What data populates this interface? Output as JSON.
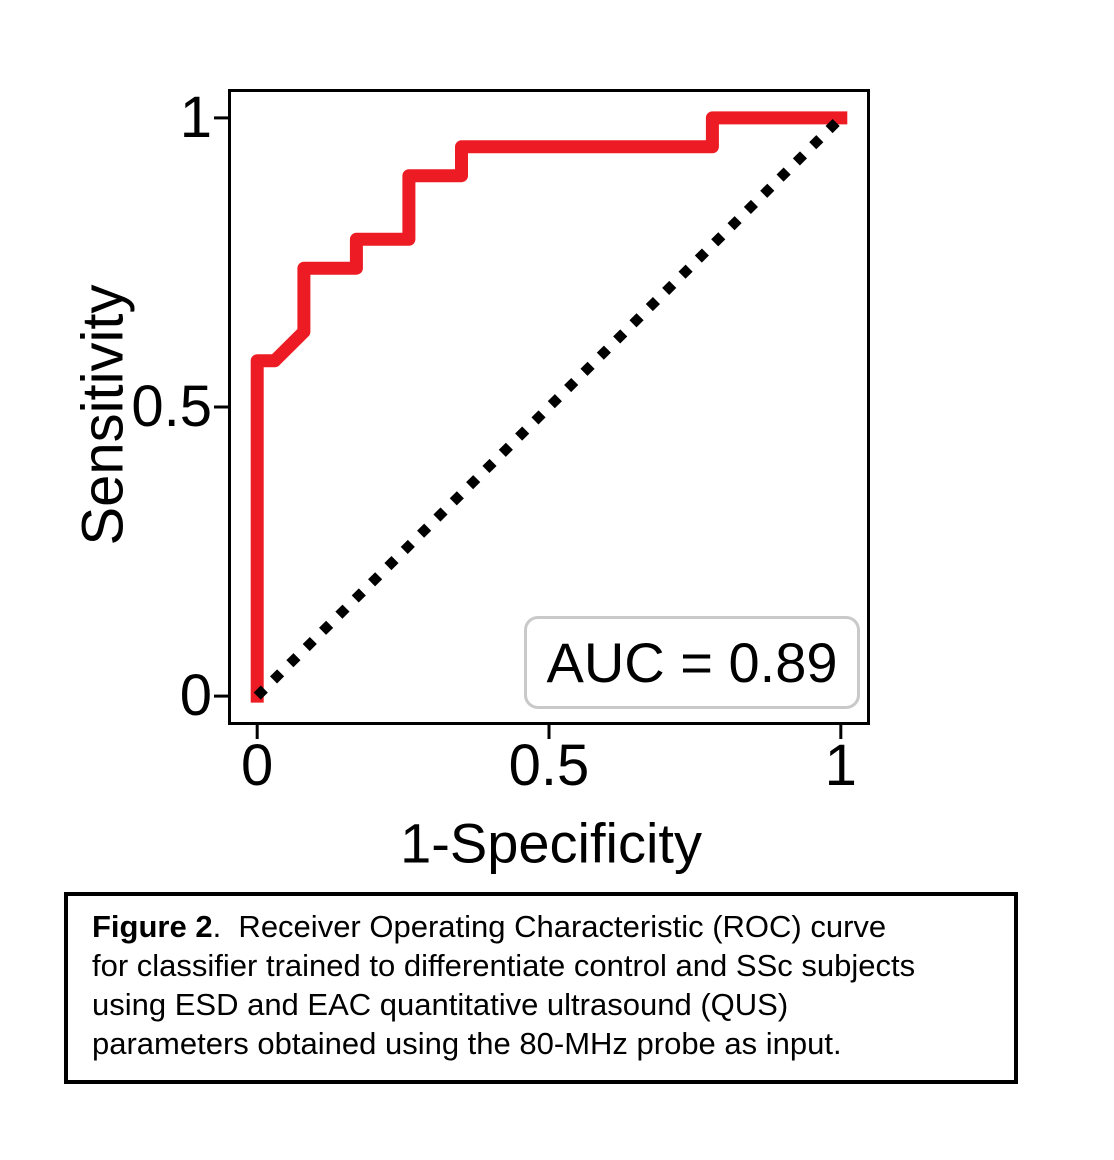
{
  "caption": {
    "label": "Figure 2",
    "line1_rest": ".  Receiver Operating Characteristic (ROC) curve",
    "lines": [
      "for classifier trained to differentiate control and SSc subjects",
      "using ESD and EAC quantitative ultrasound (QUS)",
      "parameters obtained using the 80-MHz probe as input."
    ]
  },
  "chart_data": {
    "type": "line",
    "title": "",
    "xlabel": "1-Specificity",
    "ylabel": "Sensitivity",
    "xlim": [
      -0.05,
      1.05
    ],
    "ylim": [
      -0.05,
      1.05
    ],
    "grid": false,
    "legend": "none",
    "xticks": {
      "values": [
        0,
        0.5,
        1
      ],
      "labels": [
        "0",
        "0.5",
        "1"
      ]
    },
    "yticks": {
      "values": [
        0,
        0.5,
        1
      ],
      "labels": [
        "0",
        "0.5",
        "1"
      ]
    },
    "annotation": {
      "text": "AUC = 0.89",
      "auc_value": 0.89
    },
    "colors": {
      "roc": "#ED1C24",
      "chance": "#000000",
      "axes": "#000000",
      "annotation_border": "#c9c9c9"
    },
    "series": [
      {
        "name": "roc-curve",
        "color": "#ED1C24",
        "line_style": "solid",
        "line_width": 13,
        "x": [
          0,
          0,
          0.03,
          0.08,
          0.08,
          0.17,
          0.17,
          0.26,
          0.26,
          0.35,
          0.35,
          0.78,
          0.78,
          1.0
        ],
        "y": [
          0,
          0.58,
          0.58,
          0.63,
          0.74,
          0.74,
          0.79,
          0.79,
          0.9,
          0.9,
          0.95,
          0.95,
          1.0,
          1.0
        ]
      },
      {
        "name": "chance-diagonal",
        "color": "#000000",
        "line_style": "dotted",
        "line_width": 10,
        "x": [
          0,
          1
        ],
        "y": [
          0,
          1
        ]
      }
    ]
  }
}
